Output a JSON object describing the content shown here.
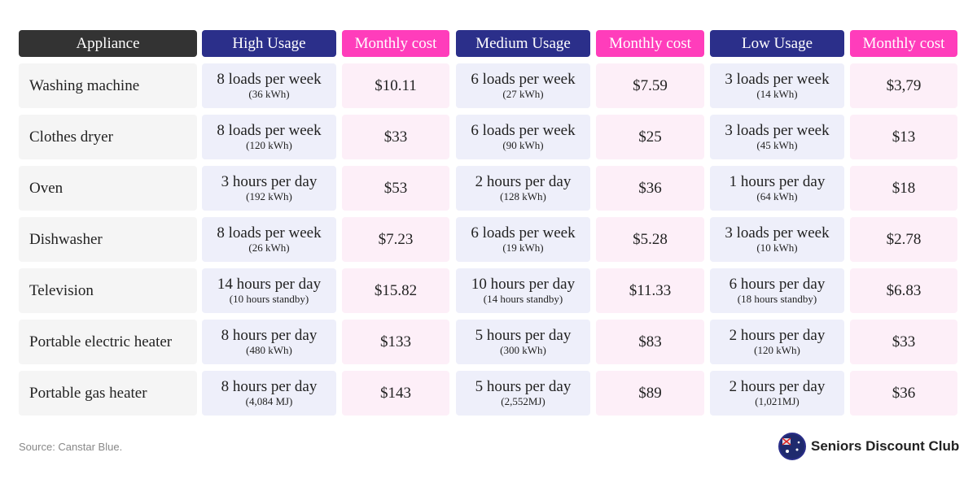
{
  "table": {
    "headers": [
      "Appliance",
      "High Usage",
      "Monthly cost",
      "Medium Usage",
      "Monthly cost",
      "Low Usage",
      "Monthly cost"
    ],
    "rows": [
      [
        "Washing machine",
        [
          "8 loads per week",
          "(36 kWh)"
        ],
        "$10.11",
        [
          "6 loads per week",
          "(27 kWh)"
        ],
        "$7.59",
        [
          "3 loads per week",
          "(14 kWh)"
        ],
        "$3,79"
      ],
      [
        "Clothes dryer",
        [
          "8 loads per week",
          "(120 kWh)"
        ],
        "$33",
        [
          "6 loads per week",
          "(90 kWh)"
        ],
        "$25",
        [
          "3 loads per week",
          "(45 kWh)"
        ],
        "$13"
      ],
      [
        "Oven",
        [
          "3 hours per day",
          "(192 kWh)"
        ],
        "$53",
        [
          "2 hours per day",
          "(128 kWh)"
        ],
        "$36",
        [
          "1 hours per day",
          "(64 kWh)"
        ],
        "$18"
      ],
      [
        "Dishwasher",
        [
          "8 loads per week",
          "(26 kWh)"
        ],
        "$7.23",
        [
          "6 loads per week",
          "(19 kWh)"
        ],
        "$5.28",
        [
          "3 loads per week",
          "(10 kWh)"
        ],
        "$2.78"
      ],
      [
        "Television",
        [
          "14 hours per day",
          "(10 hours standby)"
        ],
        "$15.82",
        [
          "10 hours per day",
          "(14 hours standby)"
        ],
        "$11.33",
        [
          "6 hours per day",
          "(18 hours standby)"
        ],
        "$6.83"
      ],
      [
        "Portable electric heater",
        [
          "8 hours per day",
          "(480 kWh)"
        ],
        "$133",
        [
          "5 hours per day",
          "(300 kWh)"
        ],
        "$83",
        [
          "2 hours per day",
          "(120 kWh)"
        ],
        "$33"
      ],
      [
        "Portable gas heater",
        [
          "8 hours per day",
          "(4,084 MJ)"
        ],
        "$143",
        [
          "5 hours per day",
          "(2,552MJ)"
        ],
        "$89",
        [
          "2 hours per day",
          "(1,021MJ)"
        ],
        "$36"
      ]
    ]
  },
  "footer": {
    "source": "Source:  Canstar Blue.",
    "brand": "Seniors Discount Club"
  }
}
